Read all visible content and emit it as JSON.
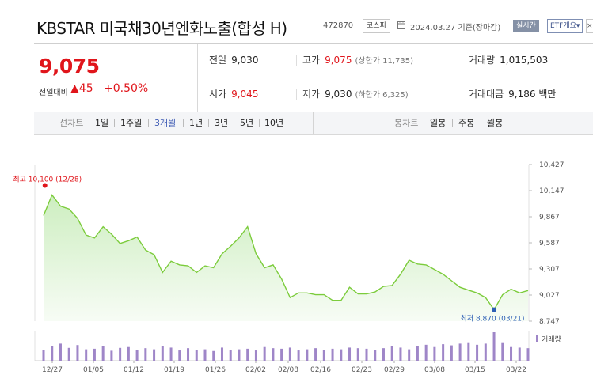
{
  "header": {
    "title": "KBSTAR 미국채30년엔화노출(합성 H)",
    "code": "472870",
    "market": "코스피",
    "date": "2024.03.27",
    "date_suffix": "기준(장마감)",
    "live_label": "실시간",
    "etf_button": "ETF개요",
    "etf_button_arrow": "▾",
    "close_label": "×"
  },
  "quote": {
    "price": "9,075",
    "change_label": "전일대비",
    "change_arrow": "▲",
    "change_value": "45",
    "change_pct": "+0.50%",
    "prev_close_label": "전일",
    "prev_close": "9,030",
    "high_label": "고가",
    "high": "9,075",
    "upper_limit_label": "(상한가",
    "upper_limit": "11,735)",
    "volume_label": "거래량",
    "volume": "1,015,503",
    "open_label": "시가",
    "open": "9,045",
    "low_label": "저가",
    "low": "9,030",
    "lower_limit_label": "(하한가",
    "lower_limit": "6,325)",
    "amount_label": "거래대금",
    "amount": "9,186",
    "amount_unit": "백만"
  },
  "toolbar": {
    "line_chart_label": "선차트",
    "periods": [
      "1일",
      "1주일",
      "3개월",
      "1년",
      "3년",
      "5년",
      "10년"
    ],
    "active_period": "3개월",
    "candle_chart_label": "봉차트",
    "candle_periods": [
      "일봉",
      "주봉",
      "월봉"
    ]
  },
  "chart_data": {
    "type": "area",
    "y_ticks": [
      "10,427",
      "10,147",
      "9,867",
      "9,587",
      "9,307",
      "9,027",
      "8,747"
    ],
    "ylim": [
      8747,
      10427
    ],
    "x_ticks": [
      "12/27",
      "01/05",
      "01/12",
      "01/19",
      "01/26",
      "02/02",
      "02/08",
      "02/16",
      "02/23",
      "02/29",
      "03/08",
      "03/15",
      "03/22"
    ],
    "values": [
      9880,
      10100,
      9980,
      9950,
      9850,
      9670,
      9640,
      9760,
      9680,
      9580,
      9610,
      9650,
      9510,
      9460,
      9270,
      9390,
      9350,
      9340,
      9270,
      9340,
      9320,
      9470,
      9550,
      9640,
      9760,
      9470,
      9320,
      9350,
      9200,
      9000,
      9050,
      9050,
      9030,
      9030,
      8970,
      8970,
      9110,
      9040,
      9040,
      9060,
      9120,
      9130,
      9250,
      9400,
      9360,
      9350,
      9300,
      9250,
      9180,
      9110,
      9080,
      9050,
      9000,
      8870,
      9030,
      9090,
      9050,
      9075
    ],
    "max_label": "최고 10,100 (12/28)",
    "min_label": "최저 8,870 (03/21)",
    "volume_legend": "거래량",
    "volumes": [
      38,
      52,
      60,
      45,
      55,
      40,
      42,
      50,
      35,
      45,
      48,
      38,
      44,
      40,
      52,
      46,
      36,
      44,
      38,
      40,
      34,
      46,
      38,
      40,
      42,
      36,
      48,
      44,
      42,
      46,
      36,
      40,
      44,
      38,
      42,
      40,
      46,
      44,
      42,
      38,
      44,
      50,
      46,
      40,
      52,
      56,
      48,
      58,
      54,
      60,
      62,
      56,
      60,
      100,
      62,
      48,
      46,
      44
    ],
    "colors": {
      "line": "#7ccc3c",
      "fill_top": "#cdeec0",
      "fill_bottom": "#f7fcf5",
      "max": "#e0151b",
      "min": "#2d5fb5",
      "volume": "#9f86c8"
    }
  }
}
